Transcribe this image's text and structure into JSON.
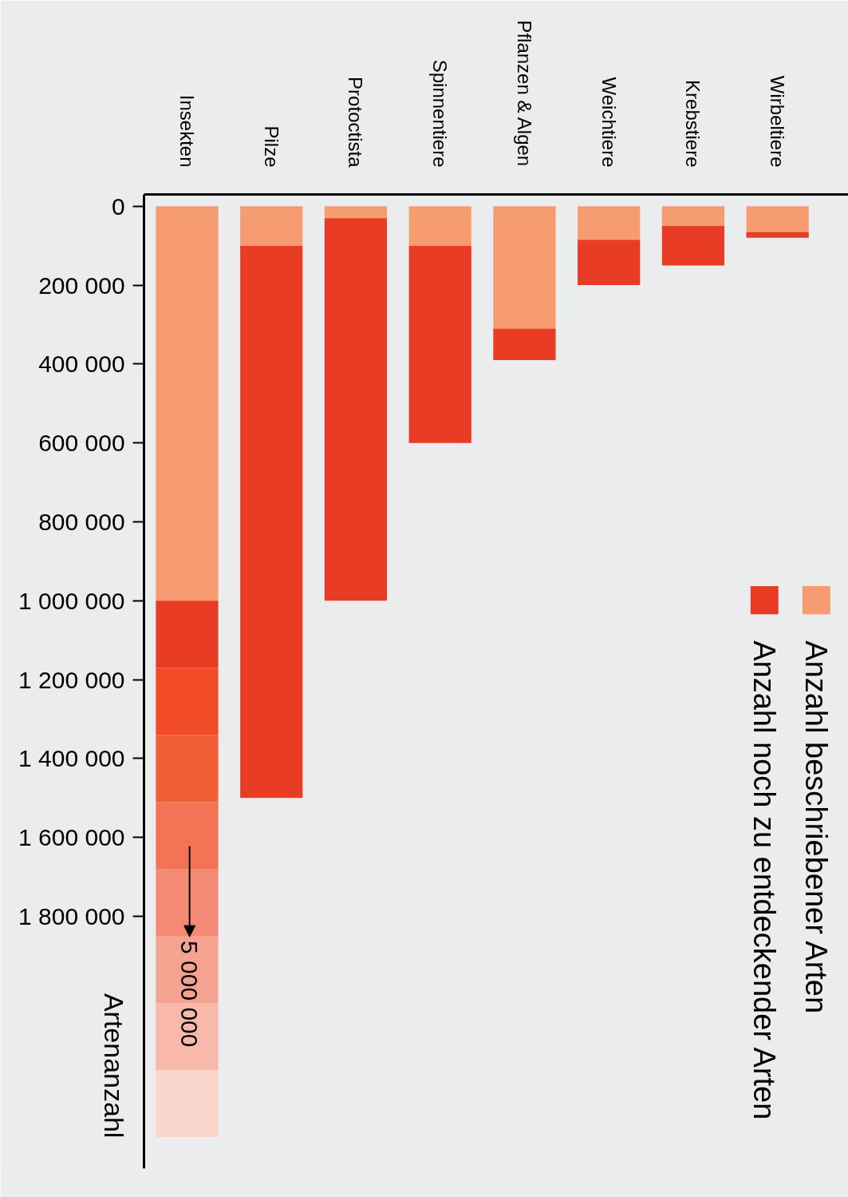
{
  "chart_data": {
    "type": "bar",
    "stacked": true,
    "ylabel": "Artenanzahl",
    "categories": [
      "Insekten",
      "Pilze",
      "Protoctista",
      "Spinnentiere",
      "Pflanzen & Algen",
      "Weichtiere",
      "Krebstiere",
      "Wirbeltiere"
    ],
    "series": [
      {
        "name": "Anzahl beschriebener Arten",
        "color": "#f79c71",
        "values": [
          1000000,
          100000,
          30000,
          100000,
          310000,
          85000,
          50000,
          65000
        ]
      },
      {
        "name": "Anzahl noch zu entdeckender Arten",
        "color": "#e83d24",
        "values": [
          170000,
          1400000,
          970000,
          500000,
          80000,
          115000,
          100000,
          15000
        ]
      },
      {
        "color": "#f24b28",
        "values": [
          170000,
          null,
          null,
          null,
          null,
          null,
          null,
          null
        ]
      },
      {
        "color": "#f15f37",
        "values": [
          170000,
          null,
          null,
          null,
          null,
          null,
          null,
          null
        ]
      },
      {
        "color": "#f27356",
        "values": [
          170000,
          null,
          null,
          null,
          null,
          null,
          null,
          null
        ]
      },
      {
        "color": "#f48a75",
        "values": [
          170000,
          null,
          null,
          null,
          null,
          null,
          null,
          null
        ]
      },
      {
        "color": "#f6a290",
        "values": [
          170000,
          null,
          null,
          null,
          null,
          null,
          null,
          null
        ]
      },
      {
        "color": "#f8b9aa",
        "values": [
          170000,
          null,
          null,
          null,
          null,
          null,
          null,
          null
        ]
      },
      {
        "color": "#fad5cc",
        "values": [
          170000,
          null,
          null,
          null,
          null,
          null,
          null,
          null
        ]
      }
    ],
    "annotations": [
      "5 000 000"
    ],
    "ylim": [
      2440000,
      -30000
    ],
    "yticks": [
      0,
      {
        "value": 200000,
        "label": "200 000"
      },
      {
        "value": 400000,
        "label": "400 000"
      },
      {
        "value": 600000,
        "label": "600 000"
      },
      {
        "value": 800000,
        "label": "800 000"
      },
      {
        "value": 1000000,
        "label": "1 000 000"
      },
      {
        "value": 1200000,
        "label": "1 200 000"
      },
      {
        "value": 1400000,
        "label": "1 400 000"
      },
      {
        "value": 1600000,
        "label": "1 600 000"
      },
      {
        "value": 1800000,
        "label": "1 800 000"
      }
    ],
    "legend": "right",
    "grid": false
  }
}
